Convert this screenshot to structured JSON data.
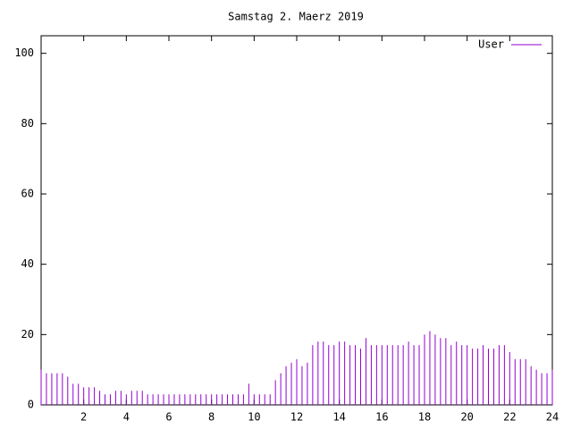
{
  "chart_data": {
    "type": "impulse",
    "title": "Samstag 2. Maerz 2019",
    "x": [
      0,
      0.25,
      0.5,
      0.75,
      1,
      1.25,
      1.5,
      1.75,
      2,
      2.25,
      2.5,
      2.75,
      3,
      3.25,
      3.5,
      3.75,
      4,
      4.25,
      4.5,
      4.75,
      5,
      5.25,
      5.5,
      5.75,
      6,
      6.25,
      6.5,
      6.75,
      7,
      7.25,
      7.5,
      7.75,
      8,
      8.25,
      8.5,
      8.75,
      9,
      9.25,
      9.5,
      9.75,
      10,
      10.25,
      10.5,
      10.75,
      11,
      11.25,
      11.5,
      11.75,
      12,
      12.25,
      12.5,
      12.75,
      13,
      13.25,
      13.5,
      13.75,
      14,
      14.25,
      14.5,
      14.75,
      15,
      15.25,
      15.5,
      15.75,
      16,
      16.25,
      16.5,
      16.75,
      17,
      17.25,
      17.5,
      17.75,
      18,
      18.25,
      18.5,
      18.75,
      19,
      19.25,
      19.5,
      19.75,
      20,
      20.25,
      20.5,
      20.75,
      21,
      21.25,
      21.5,
      21.75,
      22,
      22.25,
      22.5,
      22.75,
      23,
      23.25,
      23.5,
      23.75,
      24
    ],
    "series": [
      {
        "name": "User",
        "color": "#9400d3",
        "values": [
          10,
          9,
          9,
          9,
          9,
          8,
          6,
          6,
          5,
          5,
          5,
          4,
          3,
          3,
          4,
          4,
          3,
          4,
          4,
          4,
          3,
          3,
          3,
          3,
          3,
          3,
          3,
          3,
          3,
          3,
          3,
          3,
          3,
          3,
          3,
          3,
          3,
          3,
          3,
          6,
          3,
          3,
          3,
          3,
          7,
          9,
          11,
          12,
          13,
          11,
          12,
          17,
          18,
          18,
          17,
          17,
          18,
          18,
          17,
          17,
          16,
          19,
          17,
          17,
          17,
          17,
          17,
          17,
          17,
          18,
          17,
          17,
          20,
          21,
          20,
          19,
          19,
          17,
          18,
          17,
          17,
          16,
          16,
          17,
          16,
          16,
          17,
          17,
          15,
          13,
          13,
          13,
          11,
          10,
          9,
          9,
          10
        ]
      }
    ],
    "xlim": [
      0,
      24
    ],
    "xticks": [
      2,
      4,
      6,
      8,
      10,
      12,
      14,
      16,
      18,
      20,
      22,
      24
    ],
    "ylim": [
      0,
      105
    ],
    "yticks": [
      0,
      20,
      40,
      60,
      80,
      100
    ],
    "legend": "upper right"
  }
}
